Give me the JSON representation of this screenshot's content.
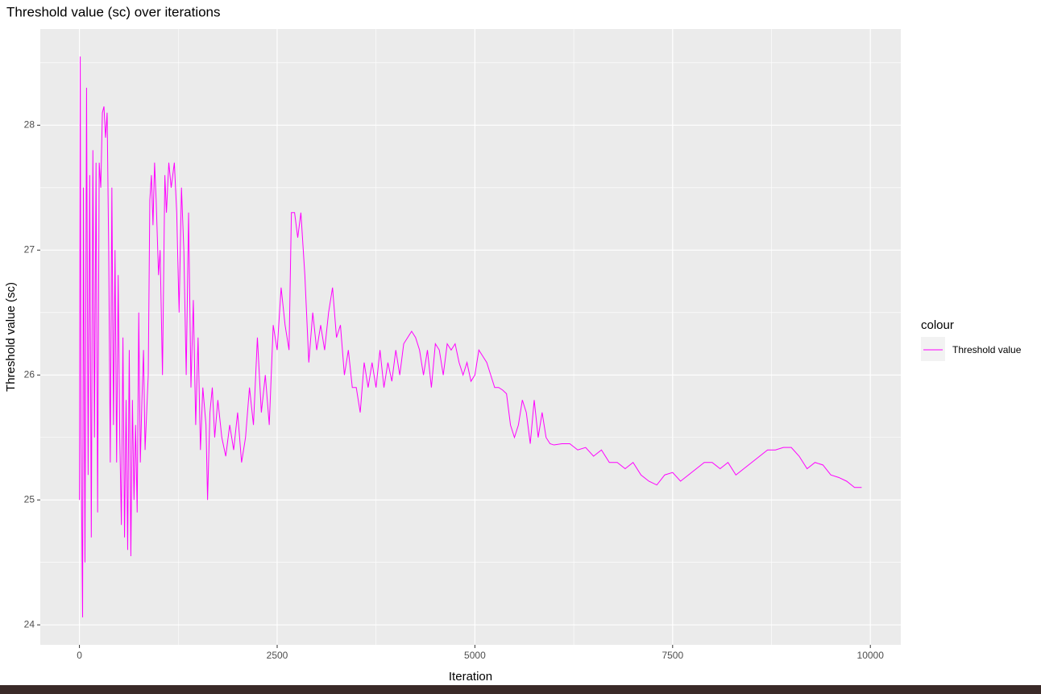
{
  "chart_data": {
    "type": "line",
    "title": "Threshold value (sc) over iterations",
    "x_label": "Iteration",
    "y_label": "Threshold value (sc)",
    "legend_title": "colour",
    "legend_position": "right",
    "grid": true,
    "xlim": [
      -495,
      10385
    ],
    "xticks": [
      0,
      2500,
      5000,
      7500,
      10000
    ],
    "xminor_ticks": [
      1250,
      3750,
      6250,
      8750
    ],
    "ylim": [
      23.84,
      28.77
    ],
    "yticks": [
      24,
      25,
      26,
      27,
      28
    ],
    "yminor_ticks": [
      24.5,
      25.5,
      26.5,
      27.5,
      28.5
    ],
    "x": [
      0,
      10,
      20,
      40,
      50,
      70,
      90,
      110,
      130,
      150,
      170,
      190,
      210,
      230,
      250,
      270,
      290,
      310,
      330,
      350,
      370,
      390,
      410,
      430,
      450,
      470,
      490,
      510,
      530,
      550,
      570,
      590,
      610,
      630,
      650,
      670,
      690,
      710,
      730,
      750,
      770,
      790,
      810,
      830,
      850,
      870,
      890,
      910,
      930,
      950,
      970,
      1000,
      1020,
      1050,
      1080,
      1100,
      1130,
      1160,
      1200,
      1230,
      1260,
      1290,
      1320,
      1350,
      1380,
      1410,
      1440,
      1470,
      1500,
      1530,
      1560,
      1600,
      1620,
      1650,
      1680,
      1710,
      1750,
      1800,
      1850,
      1900,
      1950,
      2000,
      2050,
      2100,
      2150,
      2200,
      2250,
      2300,
      2350,
      2400,
      2450,
      2500,
      2550,
      2600,
      2650,
      2680,
      2720,
      2760,
      2800,
      2850,
      2900,
      2950,
      3000,
      3050,
      3100,
      3150,
      3200,
      3250,
      3300,
      3350,
      3400,
      3450,
      3500,
      3550,
      3600,
      3650,
      3700,
      3750,
      3800,
      3850,
      3900,
      3950,
      4000,
      4050,
      4100,
      4150,
      4200,
      4250,
      4300,
      4350,
      4400,
      4450,
      4500,
      4550,
      4600,
      4650,
      4700,
      4750,
      4800,
      4850,
      4900,
      4950,
      5000,
      5050,
      5100,
      5150,
      5200,
      5250,
      5300,
      5350,
      5400,
      5450,
      5500,
      5550,
      5600,
      5650,
      5700,
      5750,
      5800,
      5850,
      5900,
      5950,
      6000,
      6100,
      6200,
      6300,
      6400,
      6500,
      6600,
      6700,
      6800,
      6900,
      7000,
      7100,
      7200,
      7300,
      7400,
      7500,
      7600,
      7700,
      7800,
      7900,
      8000,
      8100,
      8200,
      8300,
      8400,
      8500,
      8600,
      8700,
      8800,
      8900,
      9000,
      9100,
      9200,
      9300,
      9400,
      9500,
      9600,
      9700,
      9800,
      9890
    ],
    "series": [
      {
        "name": "Threshold value",
        "color": "#ff00ff",
        "values": [
          25,
          28.55,
          25.5,
          24.06,
          27.5,
          24.5,
          28.3,
          25.2,
          27.6,
          24.7,
          27.8,
          25.5,
          27.7,
          24.9,
          27.7,
          27.5,
          28.1,
          28.15,
          27.9,
          28.1,
          27.0,
          25.3,
          27.5,
          25.6,
          27.0,
          25.3,
          26.8,
          25.5,
          24.8,
          26.3,
          24.7,
          25.8,
          24.6,
          26.2,
          24.55,
          25.8,
          25.0,
          25.6,
          24.9,
          26.5,
          25.3,
          25.8,
          26.2,
          25.4,
          25.7,
          26.0,
          27.4,
          27.6,
          27.2,
          27.7,
          27.4,
          26.8,
          27.0,
          26.0,
          27.6,
          27.3,
          27.7,
          27.5,
          27.7,
          27.3,
          26.5,
          27.5,
          27.0,
          26.0,
          27.3,
          25.9,
          26.6,
          25.6,
          26.3,
          25.4,
          25.9,
          25.6,
          25.0,
          25.7,
          25.9,
          25.5,
          25.8,
          25.5,
          25.35,
          25.6,
          25.4,
          25.7,
          25.3,
          25.5,
          25.9,
          25.6,
          26.3,
          25.7,
          26.0,
          25.6,
          26.4,
          26.2,
          26.7,
          26.4,
          26.2,
          27.3,
          27.3,
          27.1,
          27.3,
          26.8,
          26.1,
          26.5,
          26.2,
          26.4,
          26.2,
          26.5,
          26.7,
          26.3,
          26.4,
          26.0,
          26.2,
          25.9,
          25.9,
          25.7,
          26.1,
          25.9,
          26.1,
          25.9,
          26.2,
          25.9,
          26.1,
          25.95,
          26.2,
          26.0,
          26.25,
          26.3,
          26.35,
          26.3,
          26.2,
          26.0,
          26.2,
          25.9,
          26.25,
          26.2,
          26.0,
          26.25,
          26.2,
          26.25,
          26.1,
          26.0,
          26.1,
          25.95,
          26.0,
          26.2,
          26.15,
          26.1,
          26.0,
          25.9,
          25.9,
          25.88,
          25.85,
          25.6,
          25.5,
          25.6,
          25.8,
          25.7,
          25.45,
          25.8,
          25.5,
          25.7,
          25.5,
          25.45,
          25.44,
          25.45,
          25.45,
          25.4,
          25.42,
          25.35,
          25.4,
          25.3,
          25.3,
          25.25,
          25.3,
          25.2,
          25.15,
          25.12,
          25.2,
          25.22,
          25.15,
          25.2,
          25.25,
          25.3,
          25.3,
          25.25,
          25.3,
          25.2,
          25.25,
          25.3,
          25.35,
          25.4,
          25.4,
          25.42,
          25.42,
          25.35,
          25.25,
          25.3,
          25.28,
          25.2,
          25.18,
          25.15,
          25.1,
          25.1
        ]
      }
    ]
  }
}
